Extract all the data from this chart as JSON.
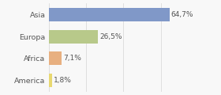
{
  "categories": [
    "Asia",
    "Europa",
    "Africa",
    "America"
  ],
  "values": [
    64.7,
    26.5,
    7.1,
    1.8
  ],
  "labels": [
    "64,7%",
    "26,5%",
    "7,1%",
    "1,8%"
  ],
  "bar_colors": [
    "#8098c8",
    "#b8c98a",
    "#e8b080",
    "#e8d870"
  ],
  "background_color": "#f8f8f8",
  "xlim": [
    0,
    78
  ],
  "bar_height": 0.62,
  "label_fontsize": 6.5,
  "tick_fontsize": 6.8,
  "grid_color": "#d5d5d5",
  "text_color": "#555555"
}
